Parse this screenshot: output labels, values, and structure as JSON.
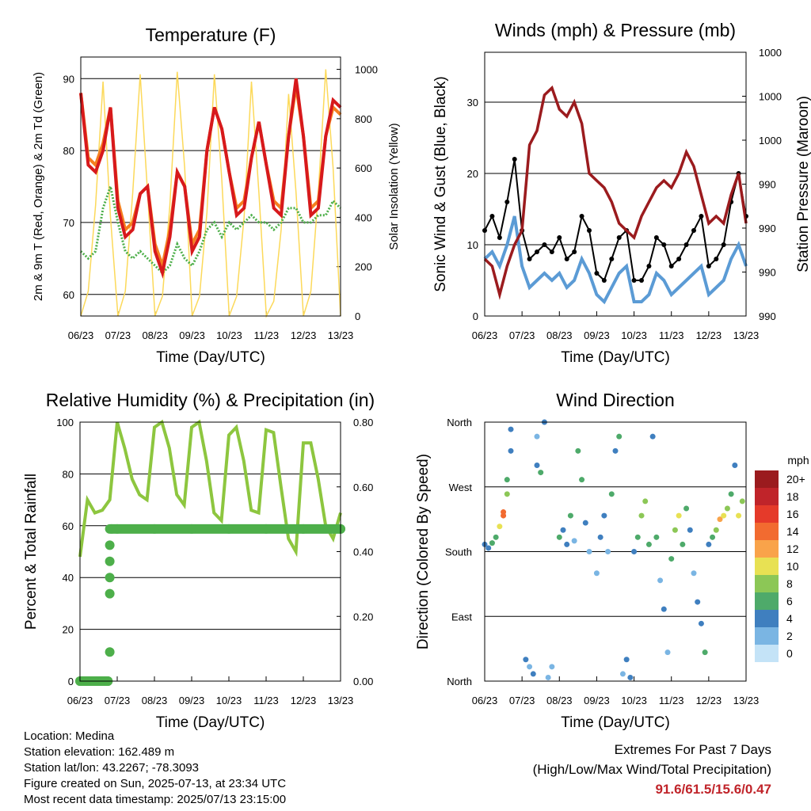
{
  "x_ticks": [
    "06/23",
    "07/23",
    "08/23",
    "09/23",
    "10/23",
    "11/23",
    "12/23",
    "13/23"
  ],
  "info": {
    "location": "Location: Medina",
    "elevation": "Station elevation: 162.489 m",
    "latlon": "Station lat/lon: 43.2267; -78.3093",
    "created": "Figure created on Sun, 2025-07-13, at 23:34 UTC",
    "recent": "Most recent data timestamp: 2025/07/13 23:15:00"
  },
  "extremes": {
    "heading": "Extremes For Past 7 Days",
    "subheading": "(High/Low/Max Wind/Total Precipitation)",
    "values": "91.6/61.5/15.6/0.47"
  },
  "colors": {
    "temp2m": "#d7191c",
    "temp9m": "#f57f20",
    "dewpoint": "#4daf4a",
    "solar": "#fcd95a",
    "wind": "#5b9bd5",
    "gust": "#000000",
    "pressure": "#9b1b1e",
    "rh": "#8dc63f",
    "precip": "#4daf4a"
  },
  "chart_data": [
    {
      "type": "line",
      "title": "Temperature (F)",
      "xlabel": "Time (Day/UTC)",
      "ylabel": "2m & 9m T (Red, Orange) & 2m Td (Green)",
      "y2label": "Solar Insolation (Yellow)",
      "ylim": [
        57,
        93
      ],
      "y2lim": [
        0,
        1050
      ],
      "yticks": [
        60,
        70,
        80,
        90
      ],
      "y2ticks": [
        0,
        200,
        400,
        600,
        800,
        1000
      ],
      "x": [
        6.0,
        6.2,
        6.4,
        6.6,
        6.8,
        7.0,
        7.2,
        7.4,
        7.6,
        7.8,
        8.0,
        8.2,
        8.4,
        8.6,
        8.8,
        9.0,
        9.2,
        9.4,
        9.6,
        9.8,
        10.0,
        10.2,
        10.4,
        10.6,
        10.8,
        11.0,
        11.2,
        11.4,
        11.6,
        11.8,
        12.0,
        12.2,
        12.4,
        12.6,
        12.8,
        13.0
      ],
      "series": [
        {
          "name": "2m T",
          "values": [
            88,
            78,
            77,
            80,
            86,
            72,
            68,
            69,
            74,
            75,
            66,
            63,
            68,
            77,
            75,
            66,
            68,
            80,
            86,
            83,
            77,
            71,
            72,
            79,
            84,
            78,
            72,
            71,
            82,
            90,
            82,
            71,
            72,
            82,
            87,
            86
          ]
        },
        {
          "name": "9m T",
          "values": [
            88,
            79,
            78,
            81,
            86,
            73,
            69,
            70,
            74,
            75,
            67,
            64,
            69,
            77,
            75,
            67,
            69,
            80,
            86,
            83,
            77,
            72,
            73,
            79,
            84,
            78,
            73,
            72,
            82,
            89,
            82,
            72,
            73,
            82,
            86,
            85
          ]
        },
        {
          "name": "2m Td",
          "values": [
            66,
            65,
            66,
            72,
            75,
            70,
            66,
            65,
            66,
            65,
            64,
            63,
            64,
            67,
            65,
            64,
            66,
            69,
            70,
            68,
            70,
            69,
            70,
            71,
            70,
            70,
            69,
            70,
            72,
            72,
            70,
            70,
            71,
            71,
            73,
            72
          ]
        },
        {
          "name": "Solar",
          "values": [
            0,
            100,
            450,
            950,
            400,
            0,
            100,
            500,
            980,
            500,
            0,
            80,
            450,
            990,
            600,
            0,
            80,
            420,
            980,
            550,
            0,
            80,
            400,
            950,
            500,
            0,
            60,
            350,
            900,
            500,
            0,
            100,
            500,
            1000,
            600,
            0
          ]
        }
      ]
    },
    {
      "type": "line",
      "title": "Winds (mph) & Pressure (mb)",
      "xlabel": "Time (Day/UTC)",
      "ylabel": "Sonic Wind & Gust (Blue, Black)",
      "y2label": "Station Pressure (Maroon)",
      "ylim": [
        0,
        37
      ],
      "yticks": [
        0,
        10,
        20,
        30
      ],
      "y2ticklabels": [
        "990",
        "990",
        "990",
        "990",
        "1000",
        "1000",
        "1000"
      ],
      "x": [
        6.0,
        6.2,
        6.4,
        6.6,
        6.8,
        7.0,
        7.2,
        7.4,
        7.6,
        7.8,
        8.0,
        8.2,
        8.4,
        8.6,
        8.8,
        9.0,
        9.2,
        9.4,
        9.6,
        9.8,
        10.0,
        10.2,
        10.4,
        10.6,
        10.8,
        11.0,
        11.2,
        11.4,
        11.6,
        11.8,
        12.0,
        12.2,
        12.4,
        12.6,
        12.8,
        13.0
      ],
      "series": [
        {
          "name": "Sonic Wind",
          "values": [
            8,
            9,
            7,
            10,
            14,
            7,
            4,
            5,
            6,
            5,
            6,
            4,
            5,
            8,
            6,
            3,
            2,
            4,
            6,
            7,
            2,
            2,
            3,
            6,
            5,
            3,
            4,
            5,
            6,
            7,
            3,
            4,
            5,
            8,
            10,
            7
          ]
        },
        {
          "name": "Gust",
          "values": [
            12,
            14,
            11,
            16,
            22,
            12,
            8,
            9,
            10,
            9,
            11,
            8,
            9,
            14,
            12,
            6,
            5,
            8,
            11,
            12,
            5,
            5,
            7,
            11,
            10,
            7,
            8,
            10,
            12,
            14,
            7,
            8,
            10,
            16,
            20,
            14
          ]
        },
        {
          "name": "Station Pressure",
          "values": [
            8,
            7,
            3,
            7,
            10,
            12,
            24,
            26,
            31,
            32,
            29,
            28,
            30,
            27,
            20,
            19,
            18,
            16,
            13,
            12,
            11,
            14,
            16,
            18,
            19,
            18,
            20,
            23,
            21,
            17,
            13,
            14,
            13,
            17,
            20,
            13
          ]
        }
      ]
    },
    {
      "type": "line",
      "title": "Relative Humidity (%) & Precipitation (in)",
      "xlabel": "Time (Day/UTC)",
      "ylabel": "Percent & Total Rainfall",
      "ylim": [
        0,
        100
      ],
      "y2lim": [
        0,
        0.8
      ],
      "yticks": [
        0,
        20,
        40,
        60,
        80,
        100
      ],
      "y2ticklabels": [
        "0.00",
        "0.20",
        "0.40",
        "0.60",
        "0.80"
      ],
      "x": [
        6.0,
        6.2,
        6.4,
        6.6,
        6.8,
        7.0,
        7.2,
        7.4,
        7.6,
        7.8,
        8.0,
        8.2,
        8.4,
        8.6,
        8.8,
        9.0,
        9.2,
        9.4,
        9.6,
        9.8,
        10.0,
        10.2,
        10.4,
        10.6,
        10.8,
        11.0,
        11.2,
        11.4,
        11.6,
        11.8,
        12.0,
        12.2,
        12.4,
        12.6,
        12.8,
        13.0
      ],
      "series": [
        {
          "name": "RH",
          "values": [
            48,
            70,
            65,
            66,
            70,
            100,
            90,
            78,
            72,
            70,
            98,
            100,
            90,
            72,
            68,
            98,
            100,
            85,
            65,
            62,
            95,
            98,
            85,
            66,
            65,
            97,
            96,
            75,
            55,
            50,
            92,
            92,
            78,
            60,
            55,
            65
          ]
        },
        {
          "name": "Precipitation",
          "x": [
            6.0,
            6.2,
            6.4,
            6.6,
            6.75,
            6.8,
            6.8,
            6.8,
            6.8,
            6.8,
            6.85,
            7.0,
            8.0,
            9.0,
            10.0,
            11.0,
            12.0,
            13.0
          ],
          "values": [
            0,
            0,
            0,
            0,
            0,
            0.09,
            0.27,
            0.32,
            0.37,
            0.42,
            0.47,
            0.47,
            0.47,
            0.47,
            0.47,
            0.47,
            0.47,
            0.47
          ]
        }
      ]
    },
    {
      "type": "scatter",
      "title": "Wind Direction",
      "xlabel": "Time (Day/UTC)",
      "ylabel": "Direction (Colored By Speed)",
      "ylim": [
        0,
        360
      ],
      "yticklabels": [
        "North",
        "East",
        "South",
        "West",
        "North"
      ],
      "colorbar_title": "mph",
      "colorbar_labels": [
        "20+",
        "18",
        "16",
        "14",
        "12",
        "10",
        "8",
        "6",
        "4",
        "2",
        "0"
      ],
      "colorbar_colors": [
        "#9b1b1e",
        "#c0242a",
        "#e53a2a",
        "#f26b30",
        "#f9a34a",
        "#e8e153",
        "#8cc756",
        "#4eaa6a",
        "#3f7fbf",
        "#7ab5e3",
        "#c4e3f7"
      ],
      "points": [
        [
          6.0,
          190,
          5
        ],
        [
          6.1,
          185,
          4
        ],
        [
          6.2,
          192,
          6
        ],
        [
          6.3,
          200,
          7
        ],
        [
          6.4,
          215,
          10
        ],
        [
          6.5,
          235,
          15
        ],
        [
          6.5,
          230,
          14
        ],
        [
          6.6,
          260,
          8
        ],
        [
          6.6,
          280,
          6
        ],
        [
          6.7,
          320,
          5
        ],
        [
          6.7,
          350,
          4
        ],
        [
          7.1,
          30,
          4
        ],
        [
          7.2,
          20,
          3
        ],
        [
          7.3,
          10,
          5
        ],
        [
          7.4,
          340,
          3
        ],
        [
          7.4,
          300,
          5
        ],
        [
          7.5,
          290,
          6
        ],
        [
          7.6,
          360,
          4
        ],
        [
          7.7,
          5,
          3
        ],
        [
          7.8,
          20,
          2
        ],
        [
          8.0,
          200,
          6
        ],
        [
          8.1,
          210,
          5
        ],
        [
          8.2,
          190,
          4
        ],
        [
          8.3,
          230,
          7
        ],
        [
          8.4,
          195,
          3
        ],
        [
          8.5,
          320,
          6
        ],
        [
          8.6,
          280,
          7
        ],
        [
          8.7,
          220,
          5
        ],
        [
          8.8,
          180,
          3
        ],
        [
          9.0,
          150,
          2
        ],
        [
          9.1,
          200,
          4
        ],
        [
          9.2,
          230,
          5
        ],
        [
          9.3,
          180,
          2
        ],
        [
          9.4,
          260,
          6
        ],
        [
          9.5,
          320,
          5
        ],
        [
          9.6,
          340,
          6
        ],
        [
          9.7,
          10,
          3
        ],
        [
          9.8,
          30,
          4
        ],
        [
          9.9,
          5,
          5
        ],
        [
          10.0,
          180,
          4
        ],
        [
          10.1,
          200,
          6
        ],
        [
          10.2,
          230,
          9
        ],
        [
          10.3,
          250,
          8
        ],
        [
          10.4,
          190,
          7
        ],
        [
          10.5,
          340,
          4
        ],
        [
          10.6,
          200,
          6
        ],
        [
          10.7,
          140,
          3
        ],
        [
          10.8,
          100,
          4
        ],
        [
          10.9,
          40,
          2
        ],
        [
          11.0,
          170,
          6
        ],
        [
          11.1,
          210,
          8
        ],
        [
          11.2,
          230,
          10
        ],
        [
          11.3,
          190,
          7
        ],
        [
          11.4,
          240,
          6
        ],
        [
          11.5,
          210,
          5
        ],
        [
          11.6,
          150,
          3
        ],
        [
          11.7,
          110,
          4
        ],
        [
          11.8,
          80,
          4
        ],
        [
          11.9,
          40,
          6
        ],
        [
          12.0,
          190,
          5
        ],
        [
          12.1,
          200,
          7
        ],
        [
          12.2,
          210,
          9
        ],
        [
          12.3,
          225,
          12
        ],
        [
          12.4,
          230,
          10
        ],
        [
          12.5,
          240,
          8
        ],
        [
          12.6,
          260,
          6
        ],
        [
          12.7,
          300,
          5
        ],
        [
          12.8,
          230,
          11
        ],
        [
          12.9,
          250,
          9
        ]
      ]
    }
  ]
}
